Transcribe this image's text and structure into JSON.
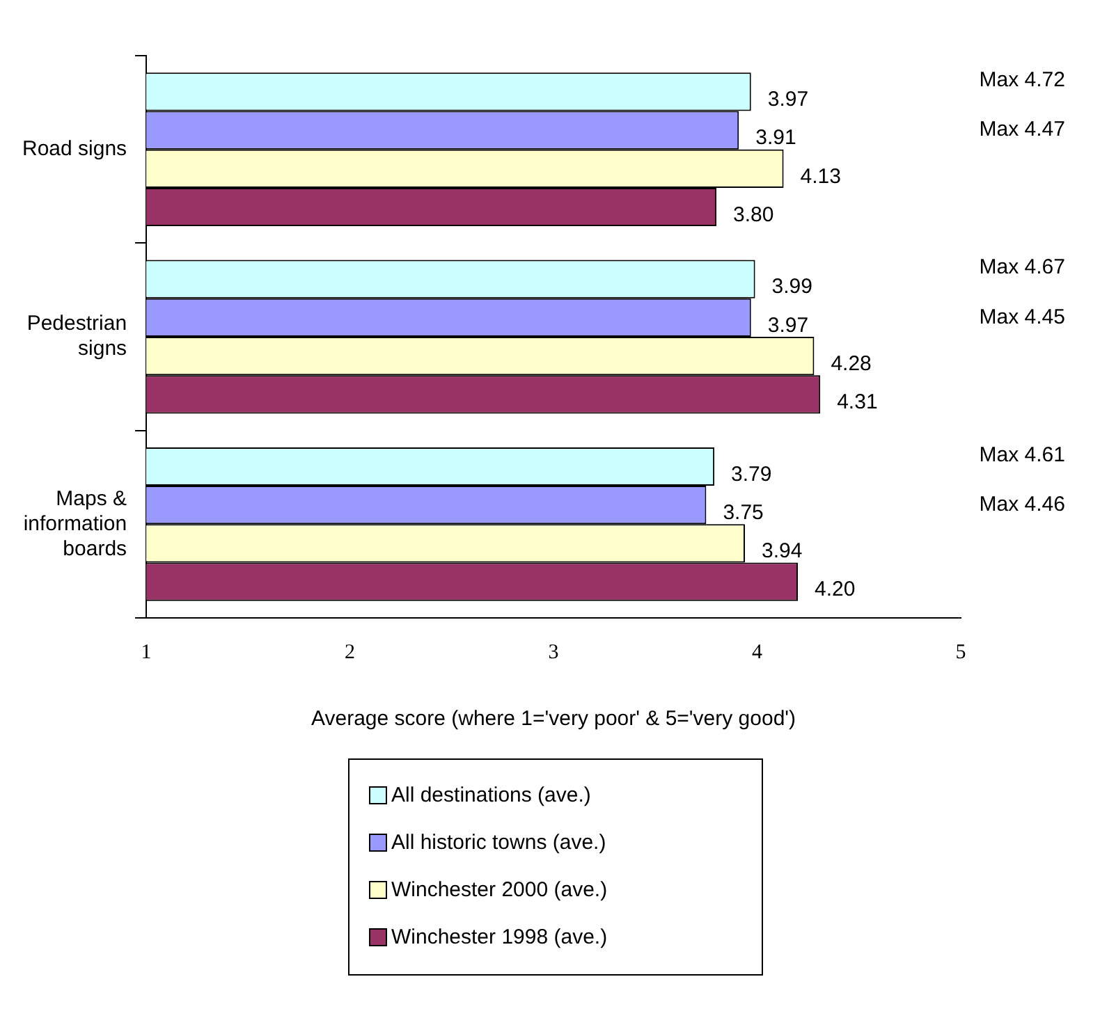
{
  "chart_data": {
    "type": "bar",
    "orientation": "horizontal",
    "xlabel": "Average score (where 1='very poor' & 5='very good')",
    "categories": [
      "Road signs",
      "Pedestrian signs",
      "Maps & information boards"
    ],
    "series": [
      {
        "name": "All destinations (ave.)",
        "color": "#ccffff",
        "values": [
          3.97,
          3.99,
          3.79
        ],
        "value_labels": [
          "3.97",
          "3.99",
          "3.79"
        ]
      },
      {
        "name": "All historic towns (ave.)",
        "color": "#9999ff",
        "values": [
          3.91,
          3.97,
          3.75
        ],
        "value_labels": [
          "3.91",
          "3.97",
          "3.75"
        ]
      },
      {
        "name": "Winchester 2000 (ave.)",
        "color": "#ffffcc",
        "values": [
          4.13,
          4.28,
          3.94
        ],
        "value_labels": [
          "4.13",
          "4.28",
          "3.94"
        ]
      },
      {
        "name": "Winchester 1998 (ave.)",
        "color": "#993366",
        "values": [
          3.8,
          4.31,
          4.2
        ],
        "value_labels": [
          "3.80",
          "4.31",
          "4.20"
        ]
      }
    ],
    "xlim": [
      1,
      5
    ],
    "xticks": [
      1,
      2,
      3,
      4,
      5
    ],
    "grid": false,
    "legend": "bottom",
    "annotations": [
      "Max 4.72",
      "Max 4.47",
      "Max 4.67",
      "Max 4.45",
      "Max 4.61",
      "Max 4.46"
    ]
  }
}
